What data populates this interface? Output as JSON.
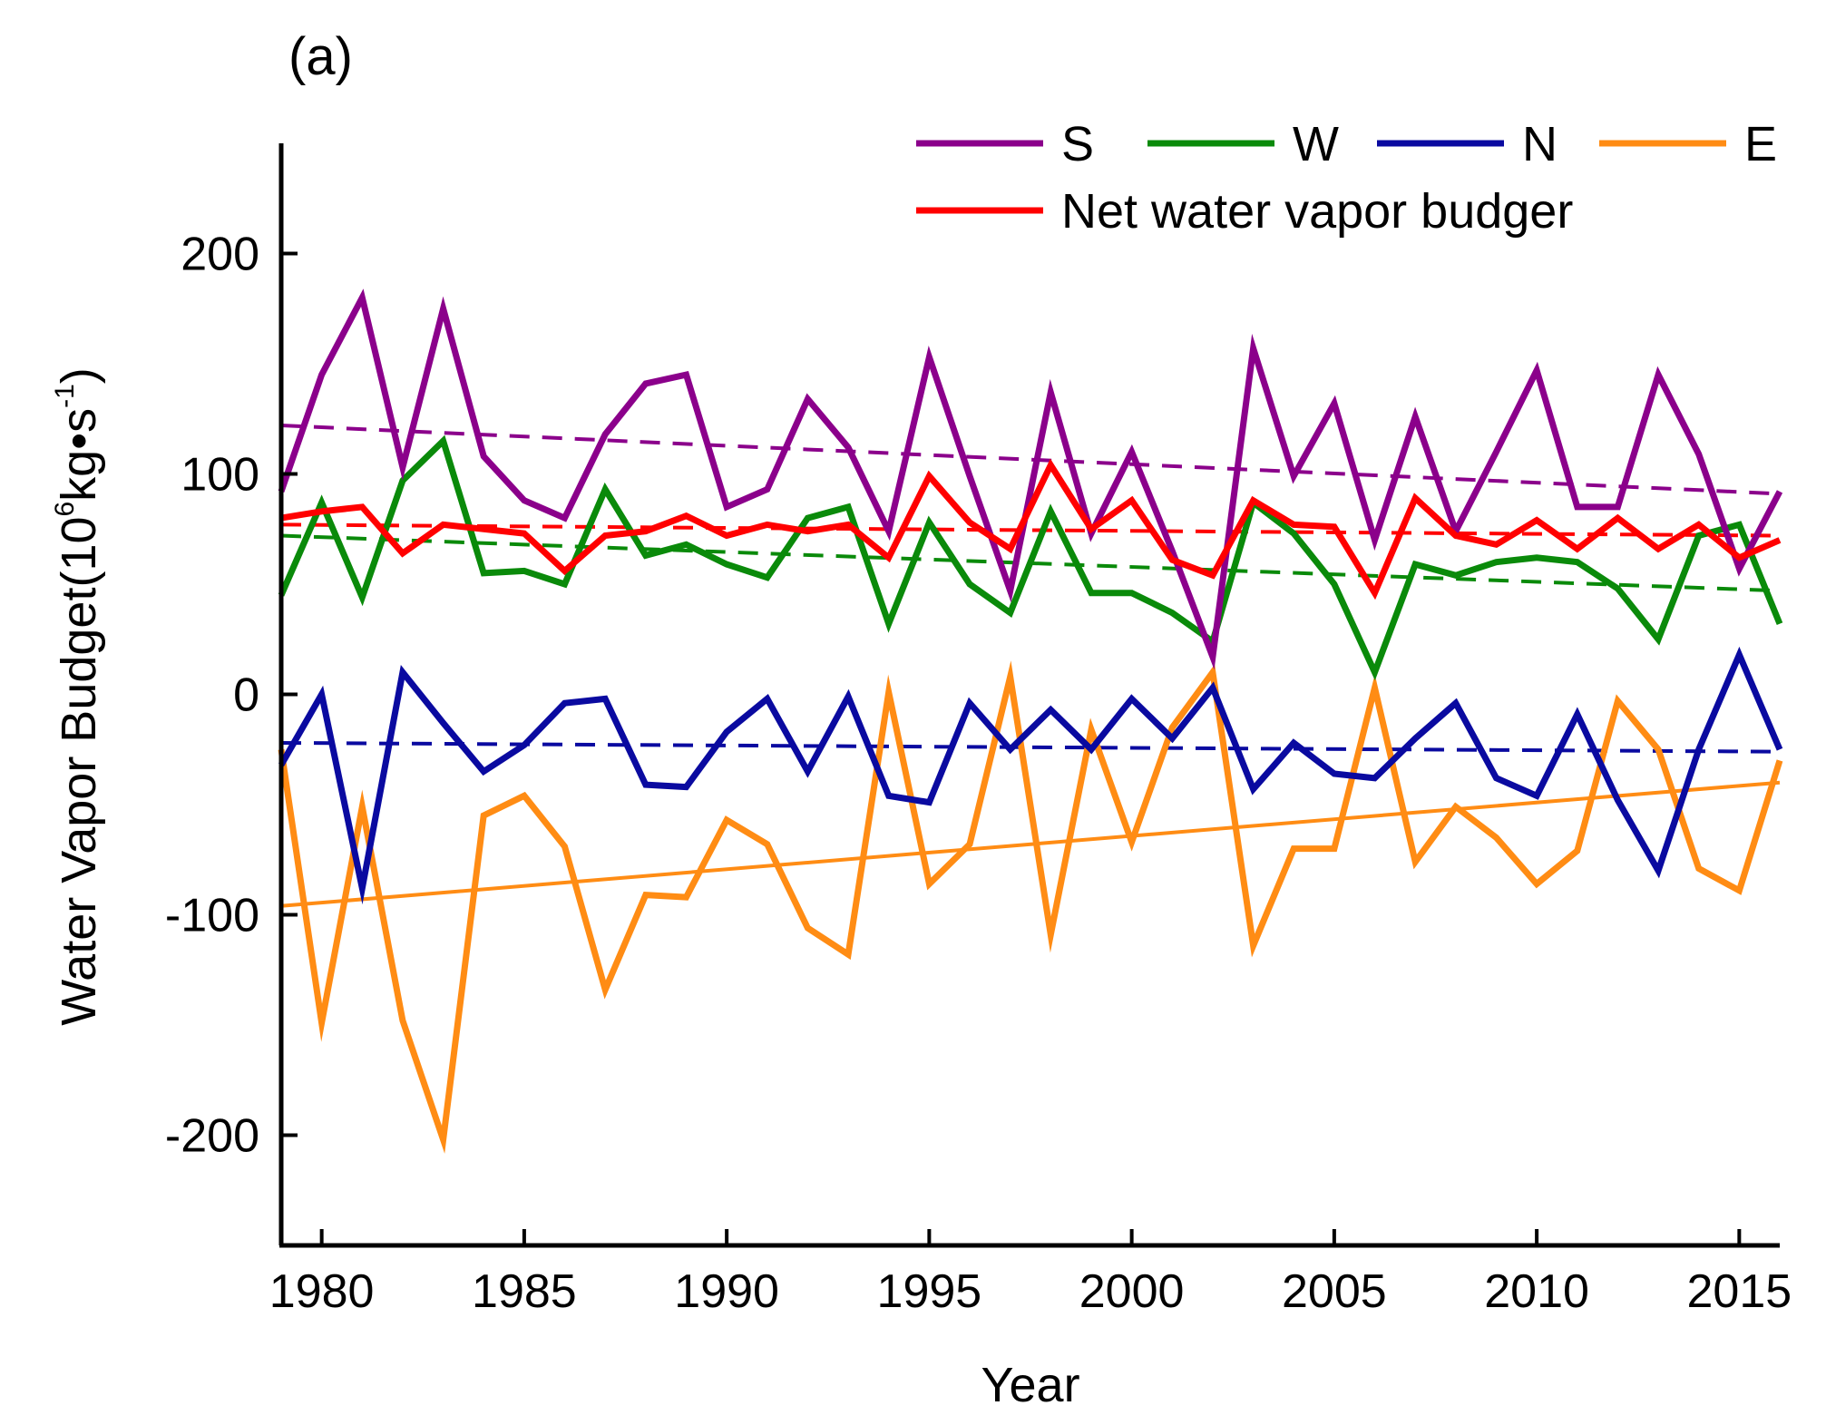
{
  "panel_label": "(a)",
  "chart_data": {
    "type": "line",
    "title": "",
    "xlabel": "Year",
    "ylabel": "Water Vapor Budget(10",
    "ylabel_exp": "6",
    "ylabel_unit": "kg•s",
    "ylabel_unit_exp": "-1",
    "ylabel_close": ")",
    "xlim": [
      1979,
      2016
    ],
    "ylim": [
      -250,
      250
    ],
    "xticks": [
      1980,
      1985,
      1990,
      1995,
      2000,
      2005,
      2010,
      2015
    ],
    "yticks": [
      -200,
      -100,
      0,
      100,
      200
    ],
    "grid": false,
    "legend_position": "top-right",
    "x": [
      1979,
      1980,
      1981,
      1982,
      1983,
      1984,
      1985,
      1986,
      1987,
      1988,
      1989,
      1990,
      1991,
      1992,
      1993,
      1994,
      1995,
      1996,
      1997,
      1998,
      1999,
      2000,
      2001,
      2002,
      2003,
      2004,
      2005,
      2006,
      2007,
      2008,
      2009,
      2010,
      2011,
      2012,
      2013,
      2014,
      2015,
      2016
    ],
    "series": [
      {
        "name": "S",
        "color": "#8b008b",
        "values": [
          92,
          145,
          180,
          103,
          175,
          108,
          88,
          80,
          118,
          141,
          145,
          85,
          93,
          134,
          112,
          74,
          153,
          99,
          47,
          137,
          73,
          110,
          65,
          17,
          157,
          99,
          132,
          70,
          126,
          74,
          110,
          147,
          85,
          85,
          145,
          109,
          57,
          92
        ]
      },
      {
        "name": "W",
        "color": "#0a8a0a",
        "values": [
          45,
          87,
          44,
          97,
          115,
          55,
          56,
          50,
          93,
          63,
          68,
          59,
          53,
          80,
          85,
          32,
          78,
          50,
          37,
          83,
          46,
          46,
          37,
          24,
          87,
          73,
          50,
          10,
          59,
          54,
          60,
          62,
          60,
          48,
          25,
          72,
          77,
          32
        ]
      },
      {
        "name": "N",
        "color": "#0a0aa0",
        "values": [
          -32,
          0,
          -88,
          10,
          -13,
          -35,
          -23,
          -4,
          -2,
          -41,
          -42,
          -17,
          -2,
          -35,
          -1,
          -46,
          -49,
          -4,
          -25,
          -7,
          -25,
          -2,
          -20,
          3,
          -43,
          -22,
          -36,
          -38,
          -20,
          -4,
          -38,
          -46,
          -9,
          -48,
          -80,
          -25,
          18,
          -25
        ]
      },
      {
        "name": "E",
        "color": "#ff8c14",
        "values": [
          -25,
          -149,
          -51,
          -148,
          -202,
          -55,
          -46,
          -69,
          -134,
          -91,
          -92,
          -57,
          -68,
          -106,
          -118,
          1,
          -86,
          -68,
          8,
          -109,
          -16,
          -67,
          -15,
          10,
          -114,
          -70,
          -70,
          3,
          -76,
          -51,
          -65,
          -86,
          -71,
          -3,
          -25,
          -79,
          -89,
          -30
        ]
      },
      {
        "name": "Net water vapor budger",
        "color": "#ff0000",
        "values": [
          80,
          83,
          85,
          64,
          77,
          75,
          73,
          56,
          72,
          74,
          81,
          72,
          77,
          74,
          77,
          62,
          99,
          78,
          66,
          104,
          75,
          88,
          61,
          54,
          88,
          77,
          76,
          46,
          89,
          72,
          68,
          79,
          66,
          80,
          66,
          77,
          62,
          70
        ]
      }
    ],
    "trends": [
      {
        "name": "S trend",
        "color": "#8b008b",
        "style": "dashed",
        "start": [
          1979,
          122
        ],
        "end": [
          2016,
          91
        ]
      },
      {
        "name": "W trend",
        "color": "#0a8a0a",
        "style": "dashed",
        "start": [
          1979,
          72
        ],
        "end": [
          2016,
          47
        ]
      },
      {
        "name": "N trend",
        "color": "#0a0aa0",
        "style": "dashed",
        "start": [
          1979,
          -22
        ],
        "end": [
          2016,
          -26
        ]
      },
      {
        "name": "E trend",
        "color": "#ff8c14",
        "style": "solid",
        "start": [
          1979,
          -96
        ],
        "end": [
          2016,
          -40
        ]
      },
      {
        "name": "Net trend",
        "color": "#ff0000",
        "style": "dashed",
        "start": [
          1979,
          77
        ],
        "end": [
          2016,
          72
        ]
      }
    ]
  }
}
